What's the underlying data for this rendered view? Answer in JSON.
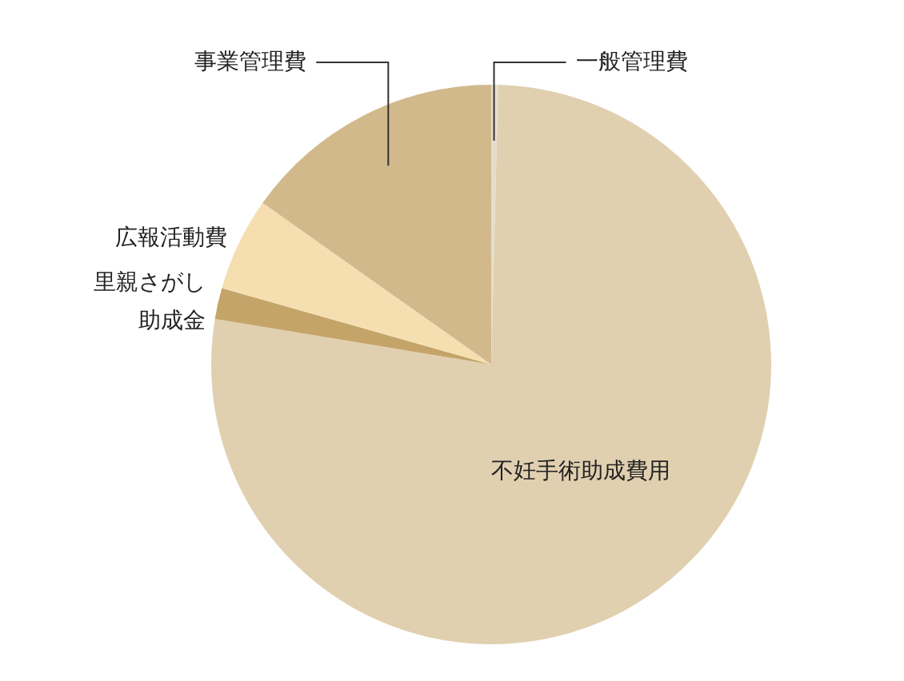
{
  "chart_data": {
    "type": "pie",
    "categories": [
      "一般管理費",
      "不妊手術助成費用",
      "里親さがし助成金",
      "広報活動費",
      "事業管理費"
    ],
    "values": [
      0.4,
      77.2,
      1.8,
      5.4,
      15.2
    ],
    "colors": [
      "#e6ddcc",
      "#e0d0b0",
      "#c4a468",
      "#f5dfb0",
      "#d2b98c"
    ]
  }
}
